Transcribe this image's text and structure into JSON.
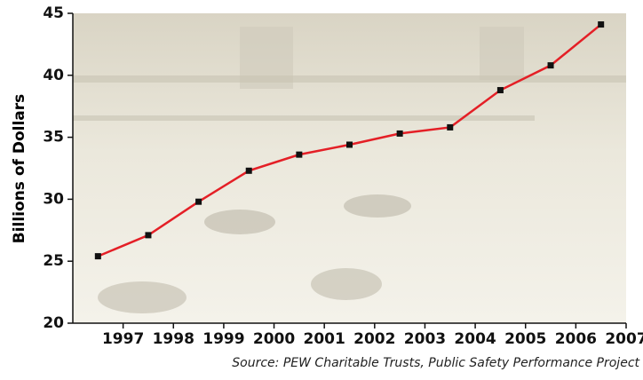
{
  "chart_data": {
    "type": "line",
    "y_label": "Billions of Dollars",
    "source": "Source: PEW Charitable Trusts, Public Safety Performance Project",
    "x": [
      1996.5,
      1997.5,
      1998.5,
      1999.5,
      2000.5,
      2001.5,
      2002.5,
      2003.5,
      2004.5,
      2005.5,
      2006.5
    ],
    "series": [
      {
        "color": "#e41f26",
        "values": [
          25.4,
          27.1,
          29.8,
          32.3,
          33.6,
          34.4,
          35.3,
          35.8,
          38.8,
          40.8,
          44.1
        ]
      }
    ],
    "xlim": [
      1996,
      2007
    ],
    "xticks": [
      1997,
      1998,
      1999,
      2000,
      2001,
      2002,
      2003,
      2004,
      2005,
      2006,
      2007
    ],
    "ylim": [
      20,
      45
    ],
    "yticks": [
      20,
      25,
      30,
      35,
      40,
      45
    ]
  }
}
